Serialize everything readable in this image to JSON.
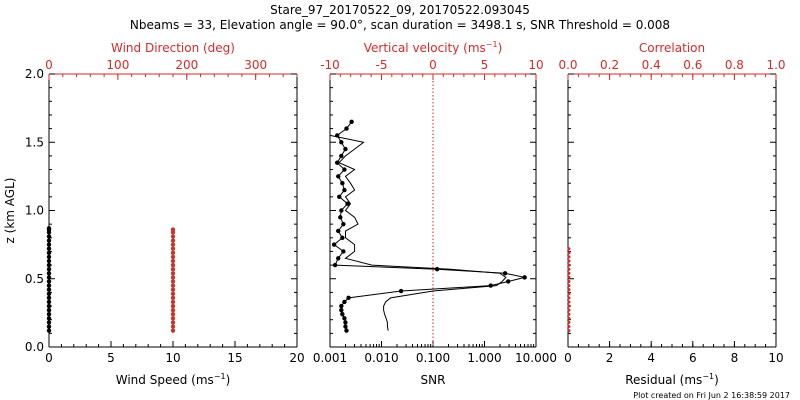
{
  "header": {
    "title_line1": "Stare_97_20170522_09, 20170522.093045",
    "title_line2": "Nbeams = 33, Elevation angle = 90.0°, scan duration = 3498.1 s, SNR Threshold = 0.008"
  },
  "footer": {
    "plot_created": "Plot created on Fri Jun  2 16:38:59 2017"
  },
  "colors": {
    "primary": "#000000",
    "accent": "#d62a2a"
  },
  "chart_data": [
    {
      "type": "scatter",
      "title": "",
      "xlabel": "Wind Speed (ms",
      "xlabel_sup": "−1",
      "xlabel_end": ")",
      "x2label": "Wind Direction (deg)",
      "ylabel": "z (km AGL)",
      "xlim": [
        0,
        20
      ],
      "x2lim": [
        0,
        360
      ],
      "ylim": [
        0,
        2
      ],
      "xticks": [
        0,
        5,
        10,
        15,
        20
      ],
      "x2ticks": [
        0,
        100,
        200,
        300
      ],
      "yticks": [
        "0.0",
        "0.5",
        "1.0",
        "1.5",
        "2.0"
      ],
      "yticks_values": [
        0,
        0.5,
        1.0,
        1.5,
        2.0
      ],
      "series": [
        {
          "values_x": [
            0,
            0,
            0,
            0,
            0,
            0,
            0,
            0,
            0,
            0,
            0,
            0,
            0,
            0,
            0,
            0,
            0,
            0,
            0,
            0,
            0,
            0,
            0,
            0,
            0,
            0,
            0
          ],
          "values_y": [
            0.12,
            0.15,
            0.18,
            0.21,
            0.24,
            0.27,
            0.3,
            0.33,
            0.36,
            0.39,
            0.42,
            0.45,
            0.48,
            0.51,
            0.54,
            0.57,
            0.6,
            0.63,
            0.66,
            0.69,
            0.72,
            0.75,
            0.78,
            0.81,
            0.84,
            0.87,
            0.86
          ]
        },
        {
          "values_x": [
            10,
            10,
            10,
            10,
            10,
            10,
            10,
            10,
            10,
            10,
            10,
            10,
            10,
            10,
            10,
            10,
            10,
            10,
            10,
            10,
            10,
            10,
            10,
            10,
            10,
            10
          ],
          "values_y": [
            0.12,
            0.15,
            0.18,
            0.21,
            0.24,
            0.27,
            0.3,
            0.33,
            0.36,
            0.39,
            0.42,
            0.45,
            0.48,
            0.51,
            0.54,
            0.57,
            0.6,
            0.63,
            0.66,
            0.69,
            0.72,
            0.75,
            0.78,
            0.81,
            0.84,
            0.86
          ]
        }
      ]
    },
    {
      "type": "line",
      "title": "",
      "xlabel": "SNR",
      "x2label": "Vertical velocity (ms",
      "x2label_sup": "−1",
      "x2label_end": ")",
      "xlim": [
        0.001,
        10
      ],
      "xscale": "log",
      "x2lim": [
        -10,
        10
      ],
      "ylim": [
        0,
        2
      ],
      "xticks": [
        "0.001",
        "0.010",
        "0.100",
        "1.000",
        "10.000"
      ],
      "xticks_values": [
        0.001,
        0.01,
        0.1,
        1,
        10
      ],
      "x2ticks": [
        -10,
        -5,
        0,
        5,
        10
      ],
      "reference_line_x": 0.1,
      "snr_profile": {
        "x": [
          0.0135,
          0.013,
          0.013,
          0.0123,
          0.0115,
          0.011,
          0.011,
          0.012,
          0.015,
          0.1,
          1.7,
          2.2,
          2.6,
          2.0,
          0.22,
          0.0065,
          0.002,
          0.003,
          0.003,
          0.002,
          0.002,
          0.0035,
          0.003,
          0.002,
          0.0025,
          0.002,
          0.003,
          0.0025,
          0.002,
          0.003,
          0.0015,
          0.002,
          0.003,
          0.0045,
          0.001
        ],
        "y": [
          0.12,
          0.15,
          0.18,
          0.21,
          0.24,
          0.27,
          0.3,
          0.33,
          0.36,
          0.41,
          0.45,
          0.48,
          0.51,
          0.54,
          0.57,
          0.6,
          0.65,
          0.7,
          0.75,
          0.8,
          0.85,
          0.9,
          0.95,
          1.0,
          1.05,
          1.1,
          1.15,
          1.2,
          1.25,
          1.3,
          1.35,
          1.4,
          1.45,
          1.5,
          1.55
        ]
      },
      "velocity_profile": {
        "x": [
          -8.4,
          -8.5,
          -8.5,
          -8.6,
          -8.8,
          -8.9,
          -8.9,
          -8.6,
          -8.2,
          -3.1,
          5.6,
          7.3,
          8.9,
          7.0,
          0.4,
          -9.5,
          -9.2,
          -8.7,
          -9.6,
          -8.8,
          -9.2,
          -8.7,
          -9.0,
          -8.9,
          -8.3,
          -9.1,
          -8.6,
          -8.8,
          -9.2,
          -8.6,
          -9.3,
          -8.9,
          -8.5,
          -8.9,
          -9.3,
          -8.4,
          -7.9
        ],
        "y": [
          0.12,
          0.15,
          0.18,
          0.21,
          0.24,
          0.27,
          0.3,
          0.33,
          0.36,
          0.41,
          0.45,
          0.48,
          0.51,
          0.54,
          0.57,
          0.6,
          0.65,
          0.7,
          0.75,
          0.8,
          0.85,
          0.9,
          0.95,
          1.0,
          1.05,
          1.1,
          1.15,
          1.2,
          1.25,
          1.3,
          1.35,
          1.4,
          1.45,
          1.5,
          1.55,
          1.6,
          1.65
        ]
      }
    },
    {
      "type": "scatter",
      "title": "",
      "xlabel": "Residual (ms",
      "xlabel_sup": "−1",
      "xlabel_end": ")",
      "x2label": "Correlation",
      "xlim": [
        0,
        10
      ],
      "x2lim": [
        0,
        1
      ],
      "ylim": [
        0,
        2
      ],
      "xticks": [
        0,
        2,
        4,
        6,
        8,
        10
      ],
      "x2ticks": [
        "0.0",
        "0.2",
        "0.4",
        "0.6",
        "0.8",
        "1.0"
      ],
      "x2ticks_values": [
        0,
        0.2,
        0.4,
        0.6,
        0.8,
        1.0
      ],
      "series": [
        {
          "values_x": [
            0,
            0,
            0,
            0,
            0,
            0,
            0,
            0,
            0,
            0,
            0,
            0,
            0,
            0,
            0,
            0,
            0,
            0,
            0,
            0,
            0
          ],
          "values_y": [
            0.12,
            0.15,
            0.18,
            0.21,
            0.24,
            0.27,
            0.3,
            0.33,
            0.36,
            0.39,
            0.42,
            0.45,
            0.48,
            0.51,
            0.54,
            0.57,
            0.6,
            0.63,
            0.66,
            0.69,
            0.72
          ]
        }
      ]
    }
  ]
}
